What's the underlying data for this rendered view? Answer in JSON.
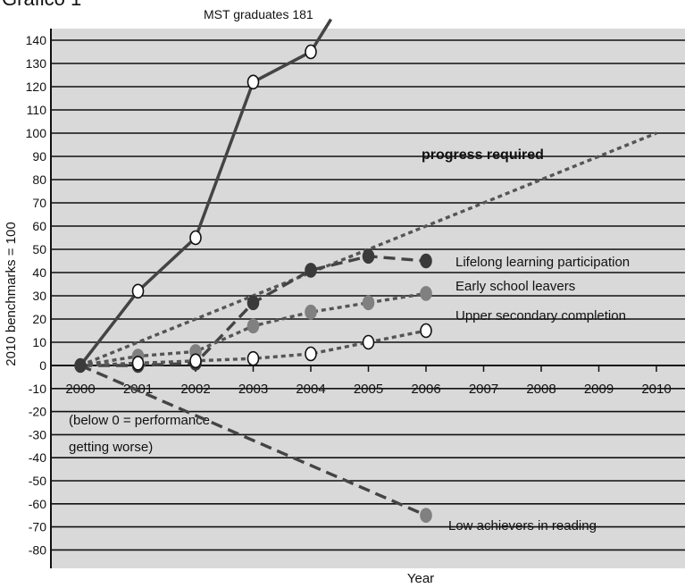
{
  "page": {
    "heading": "Grafico 1"
  },
  "chart_data": {
    "type": "line",
    "ylabel": "2010 benchmarks = 100",
    "xlabel": "Year",
    "x_ticks": [
      "2000",
      "2001",
      "2002",
      "2003",
      "2004",
      "2005",
      "2006",
      "2007",
      "2008",
      "2009",
      "2010"
    ],
    "y_ticks": [
      140,
      130,
      120,
      110,
      100,
      90,
      80,
      70,
      60,
      50,
      40,
      30,
      20,
      10,
      0,
      -10,
      -20,
      -30,
      -40,
      -50,
      -60,
      -70,
      -80
    ],
    "ylim": [
      -85,
      145
    ],
    "grid": true,
    "notes": [
      "(below 0 = performance",
      "getting worse)"
    ],
    "series": [
      {
        "name": "MST graduates",
        "style": "solid",
        "marker": "open",
        "end_label": "181",
        "points": [
          [
            2000,
            0
          ],
          [
            2001,
            32
          ],
          [
            2002,
            55
          ],
          [
            2003,
            122
          ],
          [
            2004,
            135
          ]
        ],
        "tail_to": [
          2004.35,
          149
        ]
      },
      {
        "name": "progress required",
        "style": "dotted",
        "points": [
          [
            2000,
            0
          ],
          [
            2010,
            100
          ]
        ]
      },
      {
        "name": "Lifelong learning participation",
        "style": "dashed",
        "marker": "dark",
        "color": "#3a3a3a",
        "points": [
          [
            2000,
            0
          ],
          [
            2001,
            0
          ],
          [
            2002,
            1
          ],
          [
            2003,
            27
          ],
          [
            2004,
            41
          ],
          [
            2005,
            47
          ],
          [
            2006,
            45
          ]
        ]
      },
      {
        "name": "Early school leavers",
        "style": "dotted",
        "marker": "grey",
        "color": "#777777",
        "points": [
          [
            2000,
            0
          ],
          [
            2001,
            4
          ],
          [
            2002,
            6
          ],
          [
            2003,
            17
          ],
          [
            2004,
            23
          ],
          [
            2005,
            27
          ],
          [
            2006,
            31
          ]
        ]
      },
      {
        "name": "Upper secondary completion",
        "style": "dotted",
        "marker": "open",
        "points": [
          [
            2000,
            0
          ],
          [
            2001,
            1
          ],
          [
            2002,
            2
          ],
          [
            2003,
            3
          ],
          [
            2004,
            5
          ],
          [
            2005,
            10
          ],
          [
            2006,
            15
          ]
        ]
      },
      {
        "name": "Low achievers in reading",
        "style": "dashed",
        "marker": "grey",
        "color": "#777777",
        "points": [
          [
            2000,
            0
          ],
          [
            2006,
            -65
          ]
        ]
      }
    ]
  }
}
